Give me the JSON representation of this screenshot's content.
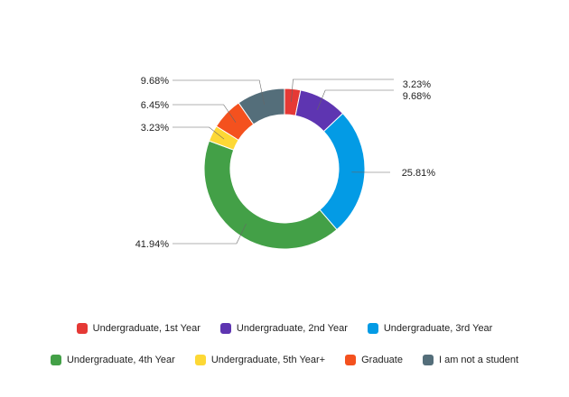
{
  "chart_data": {
    "type": "pie",
    "title": "",
    "donut": true,
    "categories": [
      "Undergraduate, 1st Year",
      "Undergraduate, 2nd Year",
      "Undergraduate, 3rd Year",
      "Undergraduate, 4th Year",
      "Undergraduate, 5th Year+",
      "Graduate",
      "I am not a student"
    ],
    "values": [
      3.23,
      9.68,
      25.81,
      41.94,
      3.23,
      6.45,
      9.68
    ],
    "labels": [
      "3.23%",
      "9.68%",
      "25.81%",
      "41.94%",
      "3.23%",
      "6.45%",
      "9.68%"
    ],
    "colors": [
      "#e53935",
      "#5e35b1",
      "#039be5",
      "#43a047",
      "#fdd835",
      "#f4511e",
      "#546e7a"
    ],
    "legend_position": "bottom"
  }
}
